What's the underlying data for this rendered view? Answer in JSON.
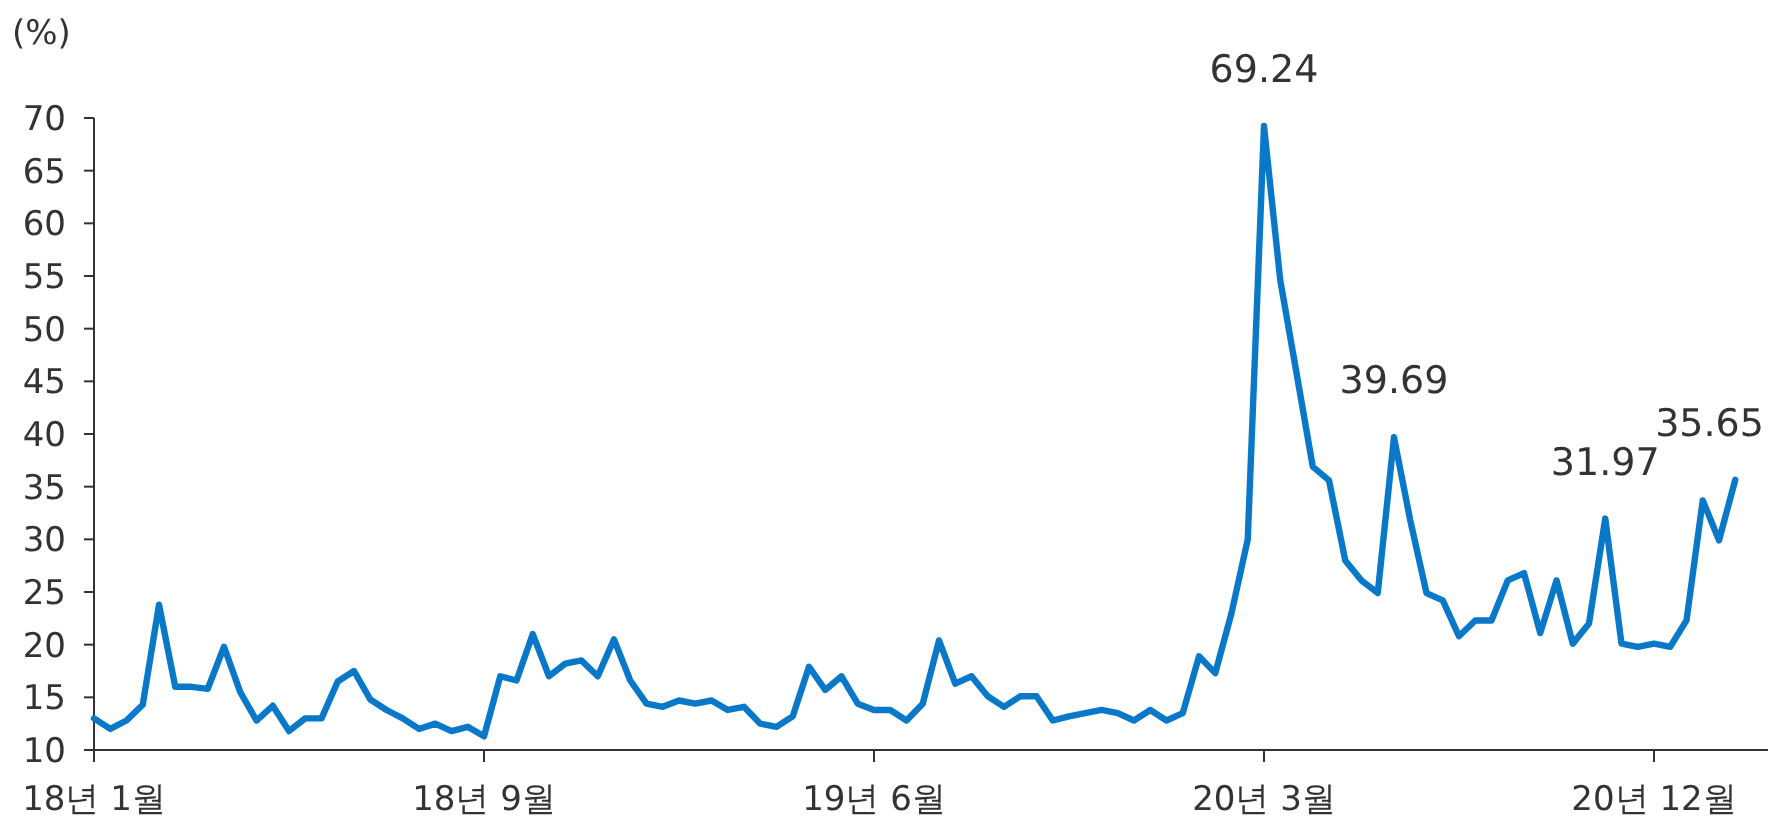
{
  "chart_data": {
    "type": "line",
    "ylabel": "(%)",
    "categories": [
      "18년 1월",
      null,
      null,
      null,
      null,
      null,
      null,
      null,
      null,
      null,
      null,
      null,
      null,
      null,
      null,
      null,
      null,
      null,
      null,
      null,
      null,
      null,
      null,
      null,
      "18년 9월",
      null,
      null,
      null,
      null,
      null,
      null,
      null,
      null,
      null,
      null,
      null,
      null,
      null,
      null,
      null,
      null,
      null,
      null,
      null,
      null,
      null,
      null,
      null,
      "19년 6월",
      null,
      null,
      null,
      null,
      null,
      null,
      null,
      null,
      null,
      null,
      null,
      null,
      null,
      null,
      null,
      null,
      null,
      null,
      null,
      null,
      null,
      null,
      null,
      "20년 3월",
      null,
      null,
      null,
      null,
      null,
      null,
      null,
      null,
      null,
      null,
      null,
      null,
      null,
      null,
      null,
      null,
      null,
      null,
      null,
      null,
      null,
      null,
      null,
      "20년 12월",
      null,
      null,
      null,
      null,
      null
    ],
    "series": [
      {
        "color": "#0a78c8",
        "values": [
          13.0,
          12.0,
          12.8,
          14.3,
          23.8,
          16.0,
          16.0,
          15.8,
          19.8,
          15.5,
          12.8,
          14.2,
          11.8,
          13.0,
          13.0,
          16.5,
          17.5,
          14.8,
          13.8,
          13.0,
          12.0,
          12.5,
          11.8,
          12.2,
          11.3,
          17.0,
          16.6,
          21.0,
          17.0,
          18.2,
          18.5,
          17.0,
          20.5,
          16.6,
          14.4,
          14.1,
          14.7,
          14.4,
          14.7,
          13.8,
          14.1,
          12.5,
          12.2,
          13.2,
          17.9,
          15.7,
          17.0,
          14.4,
          13.8,
          13.8,
          12.8,
          14.4,
          20.4,
          16.3,
          17.0,
          15.1,
          14.1,
          15.1,
          15.1,
          12.8,
          13.2,
          13.5,
          13.8,
          13.5,
          12.8,
          13.8,
          12.8,
          13.5,
          18.9,
          17.3,
          23.0,
          30.0,
          69.24,
          54.6,
          45.8,
          36.9,
          35.6,
          28.0,
          26.1,
          24.9,
          39.69,
          31.8,
          24.9,
          24.2,
          20.8,
          22.3,
          22.3,
          26.1,
          26.8,
          21.1,
          26.1,
          20.1,
          22.0,
          31.97,
          20.1,
          19.8,
          20.1,
          19.8,
          22.3,
          33.7,
          29.9,
          35.65
        ],
        "value_labels": [
          null,
          null,
          null,
          null,
          null,
          null,
          null,
          null,
          null,
          null,
          null,
          null,
          null,
          null,
          null,
          null,
          null,
          null,
          null,
          null,
          null,
          null,
          null,
          null,
          null,
          null,
          null,
          null,
          null,
          null,
          null,
          null,
          null,
          null,
          null,
          null,
          null,
          null,
          null,
          null,
          null,
          null,
          null,
          null,
          null,
          null,
          null,
          null,
          null,
          null,
          null,
          null,
          null,
          null,
          null,
          null,
          null,
          null,
          null,
          null,
          null,
          null,
          null,
          null,
          null,
          null,
          null,
          null,
          null,
          null,
          null,
          null,
          "69.24",
          null,
          null,
          null,
          null,
          null,
          null,
          null,
          "39.69",
          null,
          null,
          null,
          null,
          null,
          null,
          null,
          null,
          null,
          null,
          null,
          null,
          "31.97",
          null,
          null,
          null,
          null,
          null,
          null,
          null,
          "35.65"
        ]
      }
    ],
    "ylim": [
      10,
      70
    ],
    "yticks": [
      10,
      15,
      20,
      25,
      30,
      35,
      40,
      45,
      50,
      55,
      60,
      65,
      70
    ]
  }
}
